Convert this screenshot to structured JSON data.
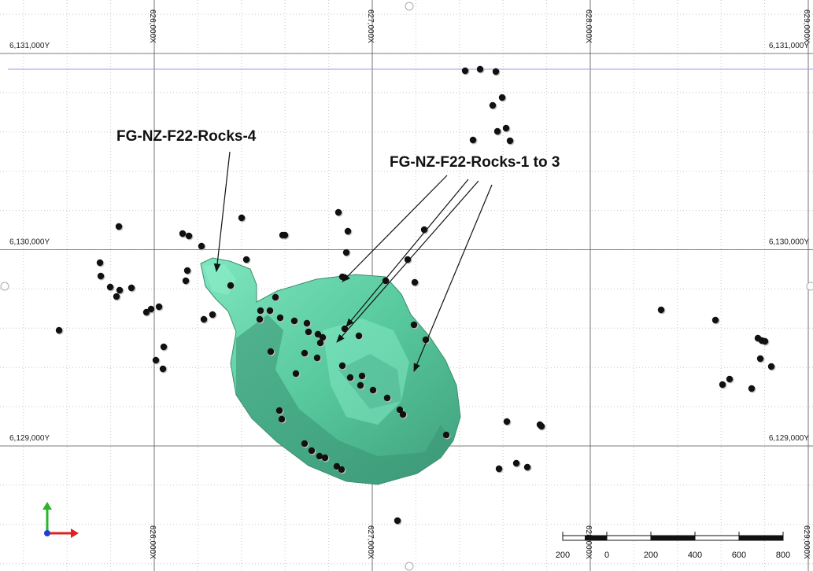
{
  "grid": {
    "x_labels": [
      "626,000X",
      "627,000X",
      "628,000X",
      "629,000X"
    ],
    "y_labels": [
      "6,131,000Y",
      "6,130,000Y",
      "6,129,000Y"
    ]
  },
  "annotations": [
    "FG-NZ-F22-Rocks-4",
    "FG-NZ-F22-Rocks-1 to 3"
  ],
  "scale_bar": {
    "labels": [
      "200",
      "0",
      "200",
      "400",
      "600",
      "800"
    ]
  }
}
